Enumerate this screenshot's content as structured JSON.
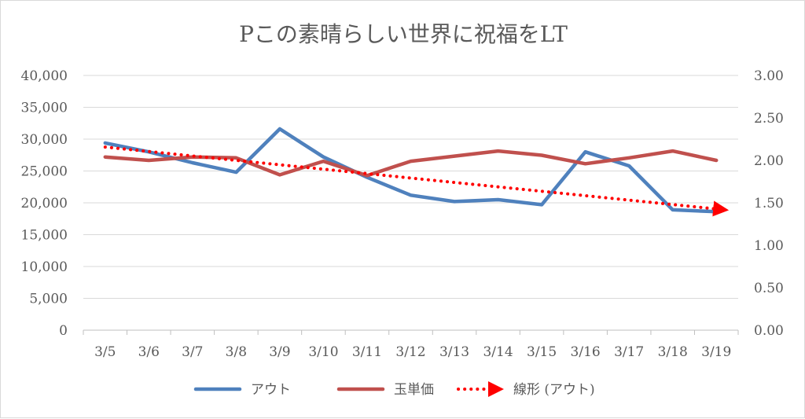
{
  "chart_data": {
    "type": "line",
    "title": "Pこの素晴らしい世界に祝福をLT",
    "categories": [
      "3/5",
      "3/6",
      "3/7",
      "3/8",
      "3/9",
      "3/10",
      "3/11",
      "3/12",
      "3/13",
      "3/14",
      "3/15",
      "3/16",
      "3/17",
      "3/18",
      "3/19"
    ],
    "y_left": {
      "min": 0,
      "max": 40000,
      "step": 5000,
      "ticks": [
        "0",
        "5,000",
        "10,000",
        "15,000",
        "20,000",
        "25,000",
        "30,000",
        "35,000",
        "40,000"
      ]
    },
    "y_right": {
      "min": 0,
      "max": 3,
      "step": 0.5,
      "ticks": [
        "0.00",
        "0.50",
        "1.00",
        "1.50",
        "2.00",
        "2.50",
        "3.00"
      ]
    },
    "grid": true,
    "legend_position": "bottom",
    "series": [
      {
        "name": "アウト",
        "axis": "left",
        "color": "#4f81bd",
        "values": [
          29400,
          28000,
          26300,
          24800,
          31600,
          27200,
          24000,
          21200,
          20200,
          20500,
          19700,
          28000,
          25800,
          18900,
          18600
        ]
      },
      {
        "name": "玉単価",
        "axis": "right",
        "color": "#c0504d",
        "values": [
          2.04,
          2.0,
          2.04,
          2.03,
          1.83,
          1.99,
          1.82,
          1.99,
          2.05,
          2.11,
          2.06,
          1.96,
          2.03,
          2.11,
          2.0
        ]
      },
      {
        "name": "線形 (アウト)",
        "axis": "left",
        "type": "trendline",
        "style": "dotted",
        "color": "#ff0000",
        "values": [
          28750,
          28060,
          27360,
          26670,
          25970,
          25280,
          24590,
          23890,
          23200,
          22510,
          21810,
          21120,
          20420,
          19730,
          19040
        ]
      }
    ]
  }
}
